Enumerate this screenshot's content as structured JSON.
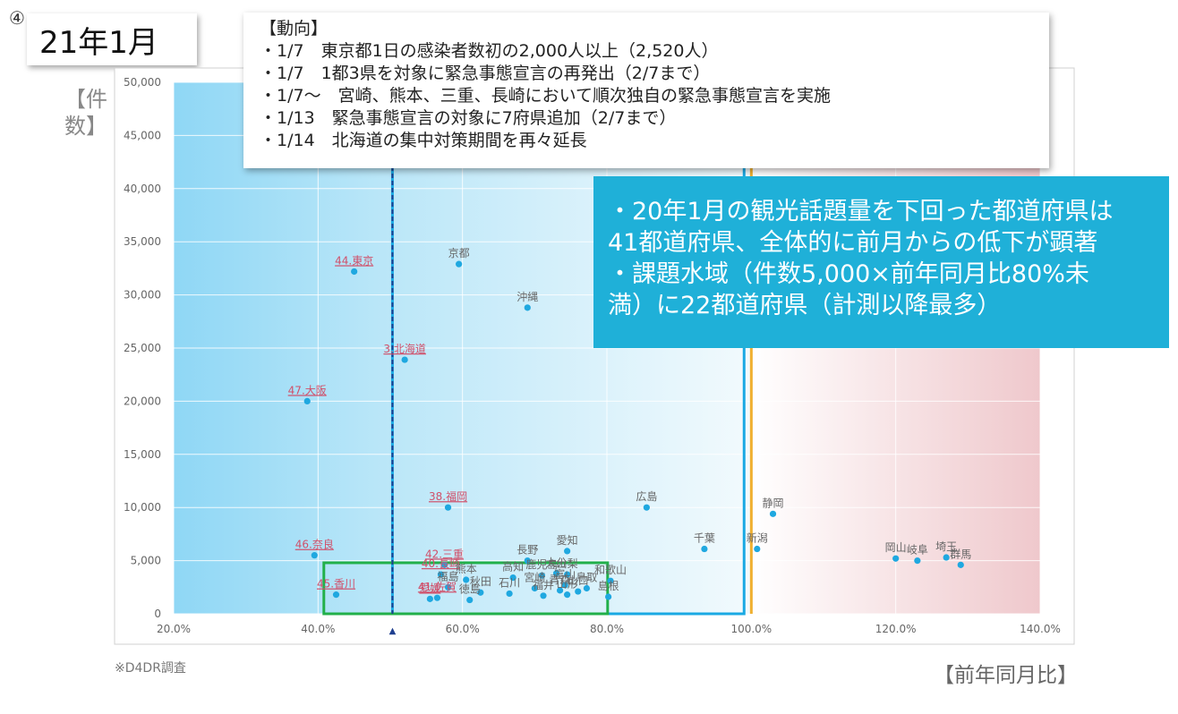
{
  "slide_number": "④",
  "period_title": "21年1月",
  "trends": {
    "heading": "【動向】",
    "items": [
      "・1/7　東京都1日の感染者数初の2,000人以上（2,520人）",
      "・1/7　1都3県を対象に緊急事態宣言の再発出（2/7まで）",
      "・1/7～　宮崎、熊本、三重、長崎において順次独自の緊急事態宣言を実施",
      "・1/13　緊急事態宣言の対象に7府県追加（2/7まで）",
      "・1/14　北海道の集中対策期間を再々延長"
    ]
  },
  "summary": {
    "lines": [
      "・20年1月の観光話題量を下回った都道府県は",
      "41都道府県、全体的に前月からの低下が顕著",
      "・課題水域（件数5,000×前年同月比80%未",
      "満）に22都道府県（計測以降最多）"
    ]
  },
  "y_unit_label": "【件数】",
  "x_unit_label": "【前年同月比】",
  "source_note": "※D4DR調査",
  "colors": {
    "point": "#1fa8e0",
    "highlight_label": "#d0506a",
    "normal_label": "#666666",
    "dashed_line": "#1f3f8f",
    "orange_line": "#f0b030",
    "blue_region_box": "#1aa9e3",
    "green_box": "#22b04a",
    "summary_bg": "#1fb0d8"
  },
  "chart_data": {
    "type": "scatter",
    "xlim": [
      0.2,
      1.4
    ],
    "ylim": [
      0,
      50000
    ],
    "x_format": "percent",
    "x_ticks": [
      "20.0%",
      "40.0%",
      "60.0%",
      "80.0%",
      "100.0%",
      "120.0%",
      "140.0%"
    ],
    "x_tick_values": [
      0.2,
      0.4,
      0.6,
      0.8,
      1.0,
      1.2,
      1.4
    ],
    "y_ticks": [
      "0",
      "5,000",
      "10,000",
      "15,000",
      "20,000",
      "25,000",
      "30,000",
      "35,000",
      "40,000",
      "45,000",
      "50,000"
    ],
    "y_tick_values": [
      0,
      5000,
      10000,
      15000,
      20000,
      25000,
      30000,
      35000,
      40000,
      45000,
      50000
    ],
    "grid": true,
    "reference_lines": {
      "dashed_x": 0.503,
      "dashed_marker": "▲",
      "solid_x": 1.0
    },
    "regions": {
      "blue_box": {
        "x": [
          0.503,
          0.99
        ],
        "y": [
          0,
          50000
        ]
      },
      "green_box": {
        "x": [
          0.408,
          0.801
        ],
        "y": [
          0,
          4800
        ]
      }
    },
    "points": [
      {
        "label": "44.東京",
        "x": 0.45,
        "y": 32200,
        "highlight": true
      },
      {
        "label": "京都",
        "x": 0.595,
        "y": 32900,
        "highlight": false
      },
      {
        "label": "沖縄",
        "x": 0.69,
        "y": 28800,
        "highlight": false
      },
      {
        "label": "3.北海道",
        "x": 0.52,
        "y": 23900,
        "highlight": true
      },
      {
        "label": "47.大阪",
        "x": 0.385,
        "y": 20000,
        "highlight": true
      },
      {
        "label": "38.福岡",
        "x": 0.58,
        "y": 10000,
        "highlight": true
      },
      {
        "label": "広島",
        "x": 0.855,
        "y": 10000,
        "highlight": false
      },
      {
        "label": "静岡",
        "x": 1.03,
        "y": 9400,
        "highlight": false
      },
      {
        "label": "46.奈良",
        "x": 0.395,
        "y": 5500,
        "highlight": true
      },
      {
        "label": "長野",
        "x": 0.69,
        "y": 5000,
        "highlight": false
      },
      {
        "label": "愛知",
        "x": 0.745,
        "y": 5900,
        "highlight": false
      },
      {
        "label": "千葉",
        "x": 0.935,
        "y": 6100,
        "highlight": false
      },
      {
        "label": "新潟",
        "x": 1.008,
        "y": 6100,
        "highlight": false
      },
      {
        "label": "岡山",
        "x": 1.2,
        "y": 5200,
        "highlight": false
      },
      {
        "label": "岐阜",
        "x": 1.23,
        "y": 5000,
        "highlight": false
      },
      {
        "label": "埼玉",
        "x": 1.27,
        "y": 5300,
        "highlight": false
      },
      {
        "label": "群馬",
        "x": 1.29,
        "y": 4600,
        "highlight": false
      },
      {
        "label": "42.三重",
        "x": 0.575,
        "y": 4600,
        "highlight": true
      },
      {
        "label": "40.長崎",
        "x": 0.57,
        "y": 3700,
        "highlight": true
      },
      {
        "label": "熊本",
        "x": 0.605,
        "y": 3200,
        "highlight": false
      },
      {
        "label": "高知",
        "x": 0.67,
        "y": 3400,
        "highlight": false
      },
      {
        "label": "鹿児島",
        "x": 0.71,
        "y": 3600,
        "highlight": false
      },
      {
        "label": "大分",
        "x": 0.73,
        "y": 3800,
        "highlight": false
      },
      {
        "label": "山梨",
        "x": 0.745,
        "y": 3700,
        "highlight": false
      },
      {
        "label": "和歌山",
        "x": 0.805,
        "y": 3100,
        "highlight": false
      },
      {
        "label": "福島",
        "x": 0.58,
        "y": 2500,
        "highlight": false
      },
      {
        "label": "秋田",
        "x": 0.625,
        "y": 2000,
        "highlight": false
      },
      {
        "label": "宮崎",
        "x": 0.7,
        "y": 2400,
        "highlight": false
      },
      {
        "label": "富山",
        "x": 0.742,
        "y": 2700,
        "highlight": false
      },
      {
        "label": "鳥取",
        "x": 0.772,
        "y": 2400,
        "highlight": false
      },
      {
        "label": "石川",
        "x": 0.665,
        "y": 1900,
        "highlight": false
      },
      {
        "label": "福井",
        "x": 0.712,
        "y": 1700,
        "highlight": false
      },
      {
        "label": "青森",
        "x": 0.735,
        "y": 2200,
        "highlight": false
      },
      {
        "label": "山形",
        "x": 0.745,
        "y": 1800,
        "highlight": false
      },
      {
        "label": "山口",
        "x": 0.76,
        "y": 2100,
        "highlight": false
      },
      {
        "label": "島根",
        "x": 0.802,
        "y": 1600,
        "highlight": false
      },
      {
        "label": "45.香川",
        "x": 0.425,
        "y": 1800,
        "highlight": true
      },
      {
        "label": "41.佐賀",
        "x": 0.565,
        "y": 1500,
        "highlight": true
      },
      {
        "label": "愛媛",
        "x": 0.555,
        "y": 1400,
        "highlight": true
      },
      {
        "label": "徳島",
        "x": 0.61,
        "y": 1300,
        "highlight": false
      }
    ]
  }
}
